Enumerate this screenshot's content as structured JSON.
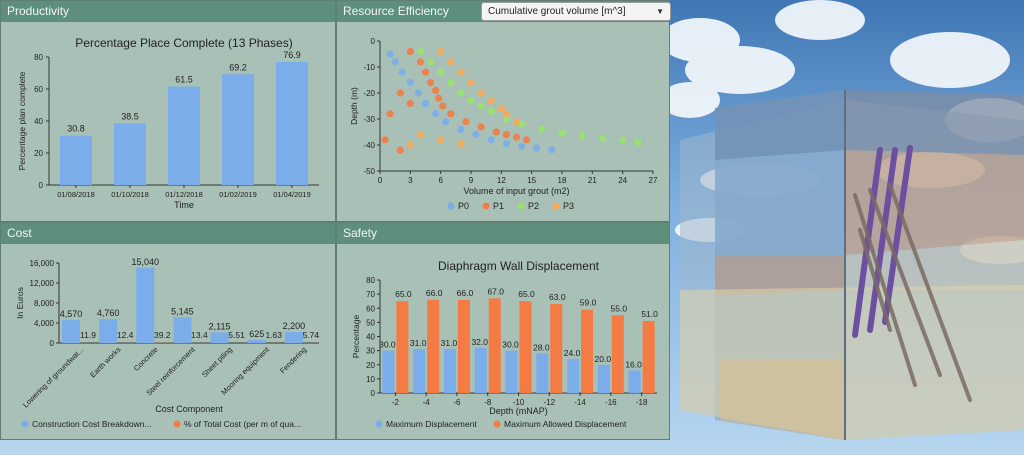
{
  "panels": {
    "productivity": {
      "title": "Productivity"
    },
    "efficiency": {
      "title": "Resource Efficiency",
      "dropdown_value": "Cumulative grout volume [m^3]"
    },
    "cost": {
      "title": "Cost"
    },
    "safety": {
      "title": "Safety"
    }
  },
  "icons": {
    "dropdown": "chevron-down-icon"
  },
  "colors": {
    "blue": "#7aadea",
    "orange": "#f47b44",
    "green": "#98e36a",
    "light_orange": "#f7a954",
    "panel_header": "#5e8f7c",
    "panel_bg": "#a9c0b6"
  },
  "chart_data": [
    {
      "id": "productivity",
      "type": "bar",
      "title": "Percentage Place Complete (13 Phases)",
      "xlabel": "Time",
      "ylabel": "Percentage plan complete",
      "categories": [
        "01/08/2018",
        "01/10/2018",
        "01/12/2018",
        "01/02/2019",
        "01/04/2019"
      ],
      "values": [
        30.8,
        38.5,
        61.5,
        69.2,
        76.9
      ],
      "value_labels": [
        "30.8",
        "38.5",
        "61.5",
        "69.2",
        "76.9"
      ],
      "ylim": [
        0,
        80
      ],
      "yticks": [
        0,
        20,
        40,
        60,
        80
      ],
      "grid": false
    },
    {
      "id": "efficiency",
      "type": "scatter",
      "xlabel": "Volume of input grout (m2)",
      "ylabel": "Depth (m)",
      "xlim": [
        0,
        27
      ],
      "ylim": [
        -50,
        0
      ],
      "xticks": [
        0,
        3,
        6,
        9,
        12,
        15,
        18,
        21,
        24,
        27
      ],
      "yticks": [
        0,
        -10,
        -20,
        -30,
        -40,
        -50
      ],
      "legend_position": "bottom",
      "series": [
        {
          "name": "P0",
          "points": [
            [
              1.0,
              -5
            ],
            [
              1.5,
              -8
            ],
            [
              2.2,
              -12
            ],
            [
              3.0,
              -16
            ],
            [
              3.8,
              -20
            ],
            [
              4.5,
              -24
            ],
            [
              5.5,
              -28
            ],
            [
              6.5,
              -31
            ],
            [
              8.0,
              -34
            ],
            [
              9.5,
              -36
            ],
            [
              11.0,
              -38
            ],
            [
              12.5,
              -39.5
            ],
            [
              14.0,
              -40.5
            ],
            [
              15.5,
              -41.2
            ],
            [
              17.0,
              -41.8
            ]
          ]
        },
        {
          "name": "P1",
          "points": [
            [
              3.0,
              -4
            ],
            [
              4.0,
              -8
            ],
            [
              4.5,
              -12
            ],
            [
              5.0,
              -16
            ],
            [
              5.5,
              -19
            ],
            [
              5.8,
              -22
            ],
            [
              6.2,
              -25
            ],
            [
              7.0,
              -28
            ],
            [
              8.5,
              -31
            ],
            [
              10.0,
              -33
            ],
            [
              11.5,
              -35
            ],
            [
              12.5,
              -36
            ],
            [
              13.5,
              -37
            ],
            [
              14.5,
              -38
            ],
            [
              2.0,
              -20
            ],
            [
              3.0,
              -24
            ],
            [
              1.0,
              -28
            ],
            [
              0.5,
              -38
            ],
            [
              2.0,
              -42
            ]
          ]
        },
        {
          "name": "P2",
          "points": [
            [
              4.0,
              -4
            ],
            [
              5.0,
              -8
            ],
            [
              6.0,
              -12
            ],
            [
              7.0,
              -16
            ],
            [
              8.0,
              -20
            ],
            [
              9.0,
              -23
            ],
            [
              10.0,
              -25
            ],
            [
              11.0,
              -27
            ],
            [
              12.5,
              -30
            ],
            [
              14.0,
              -32
            ],
            [
              16.0,
              -34
            ],
            [
              18.0,
              -35.5
            ],
            [
              20.0,
              -36.5
            ],
            [
              22.0,
              -37.5
            ],
            [
              24.0,
              -38.2
            ],
            [
              25.5,
              -39
            ]
          ]
        },
        {
          "name": "P3",
          "points": [
            [
              6.0,
              -4
            ],
            [
              7.0,
              -8
            ],
            [
              8.0,
              -12
            ],
            [
              9.0,
              -16
            ],
            [
              10.0,
              -20
            ],
            [
              11.0,
              -23
            ],
            [
              12.0,
              -26
            ],
            [
              12.5,
              -28
            ],
            [
              13.5,
              -31
            ],
            [
              4.0,
              -36
            ],
            [
              6.0,
              -38
            ],
            [
              8.0,
              -39.5
            ],
            [
              3.0,
              -40
            ]
          ]
        }
      ]
    },
    {
      "id": "cost",
      "type": "bar",
      "xlabel": "Cost Component",
      "ylabel": "In Euros",
      "categories": [
        "Lowering of groundwat...",
        "Earth works",
        "Concrete",
        "Steel reinforcement",
        "Sheet piling",
        "Mooring equipment",
        "Fendering"
      ],
      "ylim": [
        0,
        16000
      ],
      "yticks": [
        0,
        4000,
        8000,
        12000,
        16000
      ],
      "ytick_labels": [
        "0",
        "4,000",
        "8,000",
        "12,000",
        "16,000"
      ],
      "legend_position": "bottom",
      "series": [
        {
          "name": "Construction Cost Breakdown...",
          "values": [
            4570,
            4760,
            15040,
            5145,
            2115,
            625,
            2200
          ],
          "value_labels": [
            "4,570",
            "4,760",
            "15,040",
            "5,145",
            "2,115",
            "625",
            "2,200"
          ]
        },
        {
          "name": "% of Total Cost (per m of qua...",
          "values": [
            11.9,
            12.4,
            39.2,
            13.4,
            5.51,
            1.63,
            5.74
          ],
          "value_labels": [
            "11.9",
            "12.4",
            "39.2",
            "13.4",
            "5.51",
            "1.63",
            "5.74"
          ]
        }
      ]
    },
    {
      "id": "safety",
      "type": "bar",
      "title": "Diaphragm Wall Displacement",
      "xlabel": "Depth (mNAP)",
      "ylabel": "Percentage",
      "categories": [
        "-2",
        "-4",
        "-6",
        "-8",
        "-10",
        "-12",
        "-14",
        "-16",
        "-18"
      ],
      "ylim": [
        0,
        80
      ],
      "yticks": [
        0,
        10,
        20,
        30,
        40,
        50,
        60,
        70,
        80
      ],
      "legend_position": "bottom",
      "series": [
        {
          "name": "Maximum Displacement",
          "values": [
            30,
            31,
            31,
            32,
            30,
            28,
            24,
            20,
            16
          ],
          "value_labels": [
            "30.0",
            "31.0",
            "31.0",
            "32.0",
            "30.0",
            "28.0",
            "24.0",
            "20.0",
            "16.0"
          ]
        },
        {
          "name": "Maximum Allowed Displacement",
          "values": [
            65,
            66,
            66,
            67,
            65,
            63,
            59,
            55,
            51
          ],
          "value_labels": [
            "65.0",
            "66.0",
            "66.0",
            "67.0",
            "65.0",
            "63.0",
            "59.0",
            "55.0",
            "51.0"
          ]
        }
      ]
    }
  ]
}
